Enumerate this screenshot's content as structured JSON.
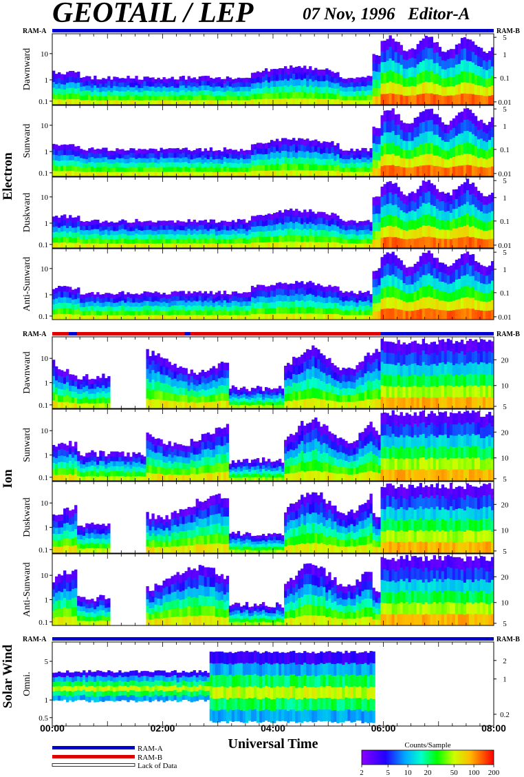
{
  "header": {
    "title": "GEOTAIL / LEP",
    "date_editor": "07 Nov, 1996   Editor-A"
  },
  "chart_data": {
    "type": "heatmap",
    "xlabel": "Universal Time",
    "x_ticks": [
      "00:00",
      "02:00",
      "04:00",
      "06:00",
      "08:00"
    ],
    "x_range_hours": [
      0,
      8
    ],
    "ram_label_left": "RAM-A",
    "ram_label_right": "RAM-B",
    "colors": {
      "ram_a": "#0000cc",
      "ram_b": "#dd0000"
    },
    "groups": [
      {
        "name": "Electron",
        "panels": [
          "Dawnward",
          "Sunward",
          "Duskward",
          "Anti-Sunward"
        ],
        "left_ticks": [
          "10",
          "1",
          "0.1"
        ],
        "right_ticks": [
          "5",
          "1",
          "0.1",
          "0.01"
        ]
      },
      {
        "name": "Ion",
        "panels": [
          "Dawnward",
          "Sunward",
          "Duskward",
          "Anti-Sunward"
        ],
        "left_ticks": [
          "10",
          "1",
          "0.1"
        ],
        "right_ticks": [
          "20",
          "10",
          "5"
        ]
      },
      {
        "name": "Solar Wind",
        "panels": [
          "Omni."
        ],
        "left_ticks": [
          "5",
          "1",
          "0.5"
        ],
        "right_ticks": [
          "2",
          "1",
          "0.2"
        ]
      }
    ],
    "legend": {
      "ram_a": "RAM-A",
      "ram_b": "RAM-B",
      "lack": "Lack of Data"
    },
    "colorbar": {
      "title": "Counts/Sample",
      "ticks": [
        "2",
        "5",
        "10",
        "20",
        "50",
        "100",
        "200"
      ],
      "range": [
        2,
        200
      ],
      "scale": "log"
    }
  }
}
